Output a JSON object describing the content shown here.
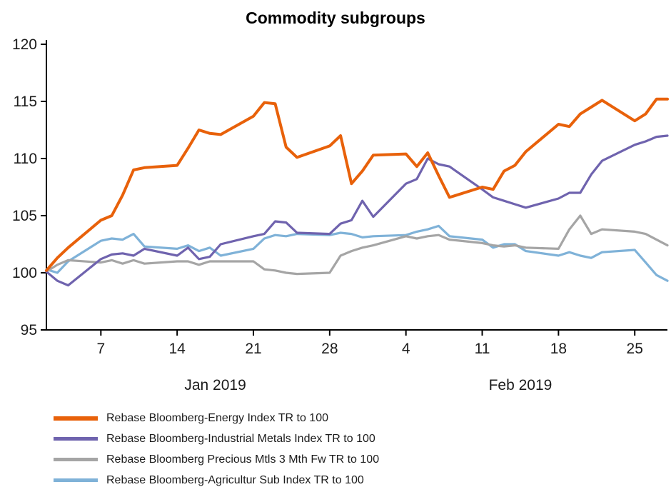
{
  "title": "Commodity subgroups",
  "background": "#FFFFFF",
  "axis_color": "#000000",
  "chart_data": {
    "type": "line",
    "title": "Commodity subgroups",
    "grid": false,
    "legend_position": "bottom-left",
    "x_unit": "calendar day index, Jan 1 2019 = 1 (trading days only)",
    "xlim": [
      2,
      59
    ],
    "ylim": [
      95,
      120
    ],
    "y_ticks": [
      95,
      100,
      105,
      110,
      115,
      120
    ],
    "x_ticks": [
      {
        "x": 7,
        "label": "7"
      },
      {
        "x": 14,
        "label": "14"
      },
      {
        "x": 21,
        "label": "21"
      },
      {
        "x": 28,
        "label": "28"
      },
      {
        "x": 35,
        "label": "4"
      },
      {
        "x": 42,
        "label": "11"
      },
      {
        "x": 49,
        "label": "18"
      },
      {
        "x": 56,
        "label": "25"
      }
    ],
    "month_labels": [
      {
        "x": 17.5,
        "label": "Jan 2019"
      },
      {
        "x": 45.5,
        "label": "Feb 2019"
      }
    ],
    "x": [
      2,
      3,
      4,
      7,
      8,
      9,
      10,
      11,
      14,
      15,
      16,
      17,
      18,
      21,
      22,
      23,
      24,
      25,
      28,
      29,
      30,
      31,
      32,
      35,
      36,
      37,
      38,
      39,
      42,
      43,
      44,
      45,
      46,
      49,
      50,
      51,
      52,
      53,
      56,
      57,
      58,
      59
    ],
    "series": [
      {
        "name": "Rebase Bloomberg-Energy Index TR to 100",
        "color": "#E8610A",
        "width": 4,
        "values": [
          100.2,
          101.3,
          102.2,
          104.6,
          105,
          106.8,
          109,
          109.2,
          109.4,
          110.9,
          112.5,
          112.2,
          112.1,
          113.7,
          114.9,
          114.8,
          111,
          110.1,
          111.1,
          112,
          107.8,
          108.9,
          110.3,
          110.4,
          109.3,
          110.5,
          108.5,
          106.6,
          107.5,
          107.3,
          108.9,
          109.4,
          110.6,
          113,
          112.8,
          113.9,
          114.5,
          115.1,
          113.3,
          113.9,
          115.2,
          115.2
        ]
      },
      {
        "name": "Rebase Bloomberg-Industrial Metals Index TR to 100",
        "color": "#6F63AE",
        "width": 3.2,
        "values": [
          100.1,
          99.3,
          98.9,
          101.2,
          101.6,
          101.7,
          101.5,
          102.1,
          101.5,
          102.2,
          101.2,
          101.4,
          102.5,
          103.2,
          103.4,
          104.5,
          104.4,
          103.5,
          103.4,
          104.3,
          104.6,
          106.3,
          104.9,
          107.8,
          108.2,
          110,
          109.5,
          109.3,
          107.3,
          106.6,
          106.3,
          106,
          105.7,
          106.5,
          107,
          107,
          108.6,
          109.8,
          111.2,
          111.5,
          111.9,
          112
        ]
      },
      {
        "name": "Rebase Bloomberg Precious Mtls 3 Mth Fw TR to 100",
        "color": "#A5A5A5",
        "width": 3.2,
        "values": [
          100.1,
          100.7,
          101.1,
          100.9,
          101.1,
          100.8,
          101.1,
          100.8,
          101,
          101,
          100.7,
          101,
          101,
          101,
          100.3,
          100.2,
          100,
          99.9,
          100,
          101.5,
          101.9,
          102.2,
          102.4,
          103.2,
          103,
          103.2,
          103.3,
          102.9,
          102.6,
          102.4,
          102.3,
          102.4,
          102.2,
          102.1,
          103.8,
          105,
          103.4,
          103.8,
          103.6,
          103.4,
          102.9,
          102.4
        ]
      },
      {
        "name": "Rebase Bloomberg-Agricultur Sub Index TR to 100",
        "color": "#7FB2D8",
        "width": 3.2,
        "values": [
          100.3,
          100,
          101,
          102.8,
          103,
          102.9,
          103.4,
          102.3,
          102.1,
          102.4,
          101.9,
          102.2,
          101.5,
          102.1,
          103,
          103.3,
          103.2,
          103.4,
          103.3,
          103.5,
          103.4,
          103.1,
          103.2,
          103.3,
          103.6,
          103.8,
          104.1,
          103.2,
          102.9,
          102.2,
          102.5,
          102.5,
          101.9,
          101.5,
          101.8,
          101.5,
          101.3,
          101.8,
          102,
          100.9,
          99.8,
          99.3
        ]
      }
    ]
  }
}
